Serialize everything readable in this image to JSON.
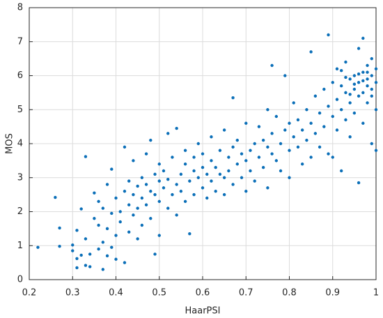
{
  "chart_data": {
    "type": "scatter",
    "xlabel": "HaarPSI",
    "ylabel": "MOS",
    "color": "#0b6fb8",
    "grid": true,
    "xlim": [
      0.2,
      1
    ],
    "xticks": [
      0.2,
      0.3,
      0.4,
      0.5,
      0.6,
      0.7,
      0.8,
      0.9,
      1
    ],
    "ylim": [
      0,
      8
    ],
    "yticks": [
      0,
      1,
      2,
      3,
      4,
      5,
      6,
      7,
      8
    ],
    "x": [
      0.22,
      0.26,
      0.27,
      0.27,
      0.3,
      0.3,
      0.31,
      0.31,
      0.31,
      0.32,
      0.32,
      0.33,
      0.33,
      0.33,
      0.34,
      0.34,
      0.35,
      0.35,
      0.36,
      0.36,
      0.36,
      0.37,
      0.37,
      0.37,
      0.38,
      0.38,
      0.38,
      0.39,
      0.39,
      0.39,
      0.4,
      0.4,
      0.4,
      0.41,
      0.41,
      0.42,
      0.42,
      0.42,
      0.43,
      0.43,
      0.43,
      0.44,
      0.44,
      0.44,
      0.45,
      0.45,
      0.45,
      0.46,
      0.46,
      0.46,
      0.47,
      0.47,
      0.47,
      0.48,
      0.48,
      0.48,
      0.49,
      0.49,
      0.49,
      0.5,
      0.5,
      0.5,
      0.5,
      0.51,
      0.51,
      0.52,
      0.52,
      0.52,
      0.53,
      0.53,
      0.54,
      0.54,
      0.54,
      0.55,
      0.55,
      0.56,
      0.56,
      0.56,
      0.57,
      0.57,
      0.58,
      0.58,
      0.58,
      0.59,
      0.59,
      0.6,
      0.6,
      0.6,
      0.61,
      0.61,
      0.62,
      0.62,
      0.62,
      0.63,
      0.63,
      0.64,
      0.64,
      0.65,
      0.65,
      0.65,
      0.66,
      0.66,
      0.67,
      0.67,
      0.67,
      0.68,
      0.68,
      0.69,
      0.69,
      0.7,
      0.7,
      0.7,
      0.71,
      0.71,
      0.72,
      0.72,
      0.73,
      0.73,
      0.74,
      0.74,
      0.75,
      0.75,
      0.75,
      0.76,
      0.76,
      0.76,
      0.77,
      0.77,
      0.78,
      0.78,
      0.79,
      0.79,
      0.8,
      0.8,
      0.8,
      0.81,
      0.81,
      0.82,
      0.82,
      0.83,
      0.83,
      0.84,
      0.84,
      0.85,
      0.85,
      0.85,
      0.86,
      0.86,
      0.87,
      0.87,
      0.88,
      0.88,
      0.89,
      0.89,
      0.89,
      0.9,
      0.9,
      0.9,
      0.91,
      0.91,
      0.91,
      0.92,
      0.92,
      0.92,
      0.93,
      0.93,
      0.93,
      0.94,
      0.94,
      0.94,
      0.95,
      0.95,
      0.95,
      0.96,
      0.96,
      0.96,
      0.96,
      0.97,
      0.97,
      0.97,
      0.97,
      0.98,
      0.98,
      0.98,
      0.98,
      0.99,
      0.99,
      0.99,
      0.99,
      1,
      1,
      1,
      1,
      0.95,
      0.96,
      0.97,
      0.98,
      0.99,
      0.94,
      0.93,
      0.92
    ],
    "values": [
      0.95,
      2.42,
      1.52,
      0.98,
      0.85,
      1.02,
      0.62,
      0.35,
      1.45,
      2.08,
      0.72,
      3.62,
      0.42,
      1.2,
      0.38,
      0.75,
      1.8,
      2.55,
      0.9,
      1.6,
      2.3,
      0.3,
      1.1,
      2.1,
      1.5,
      0.7,
      2.8,
      1.95,
      0.95,
      3.25,
      1.3,
      2.4,
      0.6,
      2.0,
      1.7,
      2.6,
      0.5,
      3.9,
      1.4,
      2.2,
      2.9,
      1.9,
      2.5,
      3.5,
      2.75,
      1.2,
      2.1,
      3.0,
      2.4,
      1.6,
      2.8,
      3.7,
      2.2,
      2.6,
      1.8,
      4.1,
      3.1,
      2.5,
      0.75,
      2.9,
      2.3,
      1.3,
      3.4,
      2.7,
      3.2,
      2.1,
      4.3,
      2.95,
      2.5,
      3.6,
      2.8,
      4.45,
      1.9,
      3.1,
      2.6,
      3.4,
      2.3,
      3.8,
      2.9,
      1.35,
      3.2,
      3.6,
      2.5,
      3.0,
      4.0,
      2.7,
      3.3,
      3.7,
      3.1,
      2.4,
      3.5,
      4.2,
      2.9,
      3.3,
      2.6,
      3.8,
      3.1,
      3.0,
      4.4,
      2.5,
      3.6,
      3.2,
      5.35,
      3.9,
      2.8,
      3.4,
      4.1,
      3.7,
      3.0,
      3.5,
      4.6,
      2.6,
      3.8,
      3.2,
      4.0,
      2.9,
      3.6,
      4.5,
      3.3,
      4.1,
      3.9,
      5.0,
      2.7,
      6.3,
      3.7,
      4.3,
      3.5,
      4.8,
      4.0,
      3.2,
      6.0,
      4.4,
      3.8,
      4.6,
      3.0,
      4.2,
      5.2,
      3.9,
      4.7,
      4.4,
      3.4,
      5.0,
      4.1,
      6.7,
      4.6,
      3.6,
      5.4,
      4.3,
      4.9,
      3.9,
      5.6,
      4.5,
      7.2,
      5.1,
      3.7,
      4.8,
      5.8,
      3.6,
      5.3,
      4.4,
      6.2,
      5.0,
      5.7,
      3.2,
      5.5,
      4.7,
      6.4,
      5.9,
      5.2,
      4.2,
      5.6,
      6.0,
      4.9,
      6.8,
      5.4,
      5.8,
      2.85,
      6.1,
      5.5,
      7.1,
      4.6,
      5.9,
      6.3,
      5.2,
      5.7,
      6.0,
      5.4,
      6.5,
      4.0,
      5.8,
      6.2,
      3.8,
      5.0,
      5.75,
      6.05,
      5.85,
      6.1,
      5.6,
      5.45,
      5.95,
      6.15
    ]
  }
}
